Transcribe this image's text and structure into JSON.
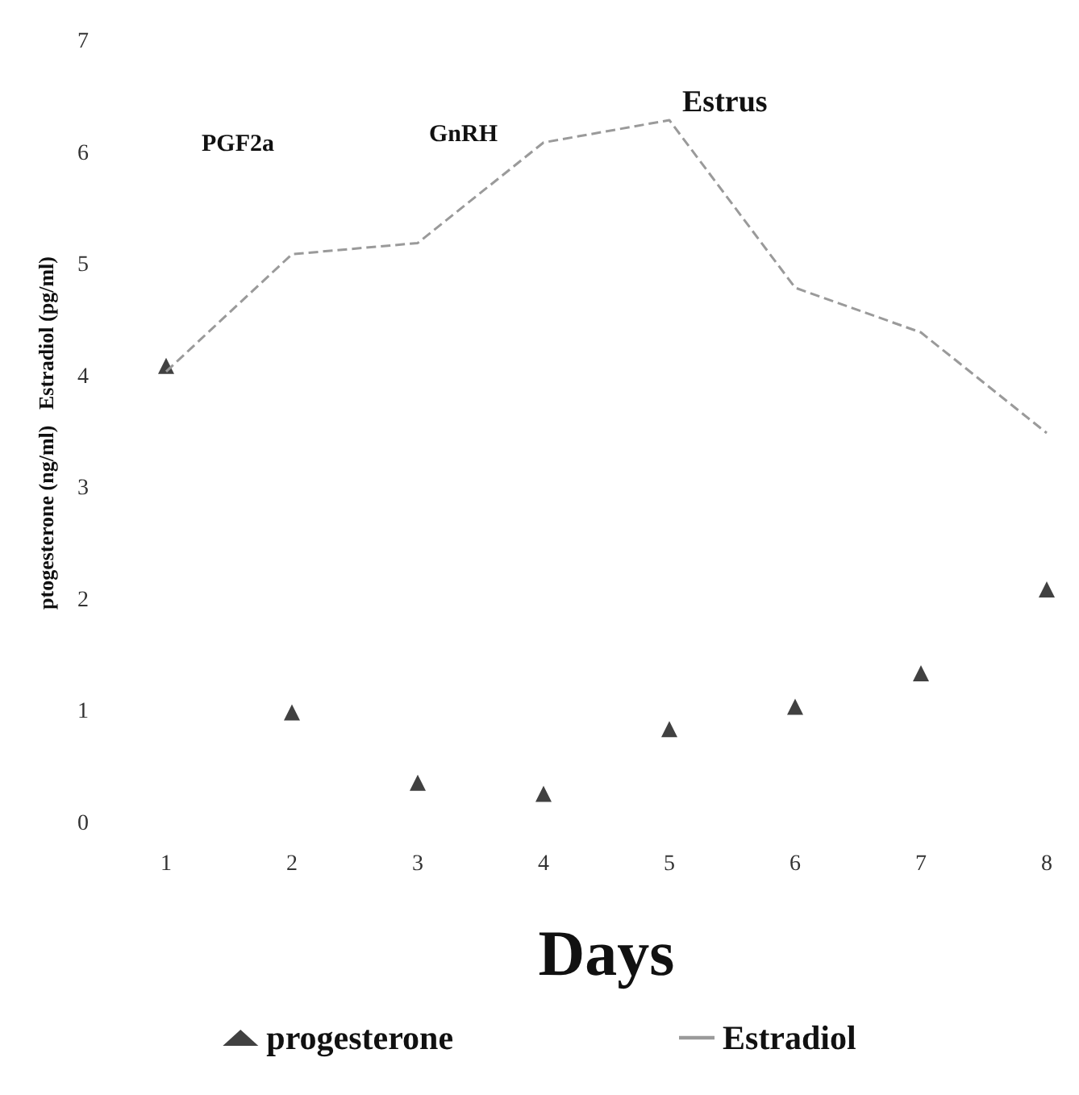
{
  "chart_data": {
    "type": "scatter",
    "xlabel": "Days",
    "ylabel": "ptogesterone (ng/ml)   Estradiol (pg/ml)",
    "x": [
      1,
      2,
      3,
      4,
      5,
      6,
      7,
      8
    ],
    "series": [
      {
        "name": "progesterone",
        "color": "#111111",
        "marker": "triangle",
        "values": [
          4.1,
          1.0,
          0.37,
          0.27,
          0.85,
          1.05,
          1.35,
          2.1
        ]
      },
      {
        "name": "Estradiol",
        "type": "line",
        "color": "#9a9a9a",
        "marker": "none",
        "line_style": "dashed",
        "values": [
          4.05,
          5.1,
          5.2,
          6.1,
          6.3,
          4.8,
          4.4,
          3.5
        ]
      }
    ],
    "xlim": [
      1,
      8
    ],
    "xticks": [
      1,
      2,
      3,
      4,
      5,
      6,
      7,
      8
    ],
    "ylim": [
      0,
      7
    ],
    "yticks": [
      0,
      1,
      2,
      3,
      4,
      5,
      6,
      7
    ],
    "grid": false,
    "legend": "bottom",
    "annotations": [
      "PGF2a",
      "GnRH",
      "Estrus"
    ]
  }
}
